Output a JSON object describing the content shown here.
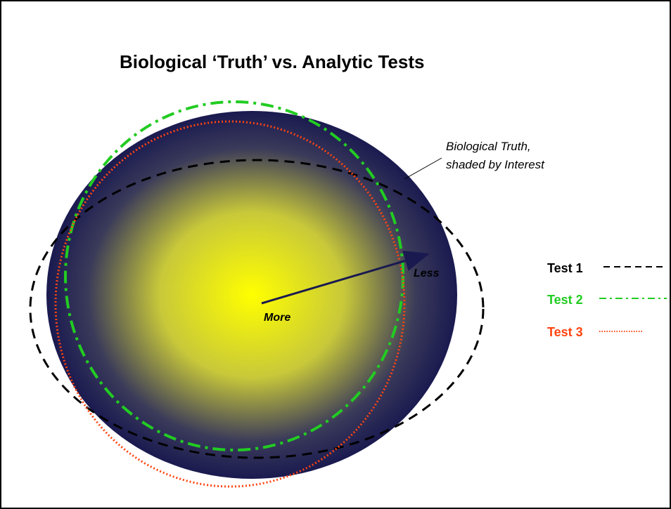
{
  "title": "Biological ‘Truth’ vs. Analytic Tests",
  "annotation": {
    "line1": "Biological Truth,",
    "line2": "shaded by Interest"
  },
  "arrow": {
    "start": "More",
    "end": "Less"
  },
  "legend": [
    {
      "label": "Test 1",
      "color": "#000000"
    },
    {
      "label": "Test 2",
      "color": "#22cc22"
    },
    {
      "label": "Test 3",
      "color": "#ff4411"
    }
  ]
}
